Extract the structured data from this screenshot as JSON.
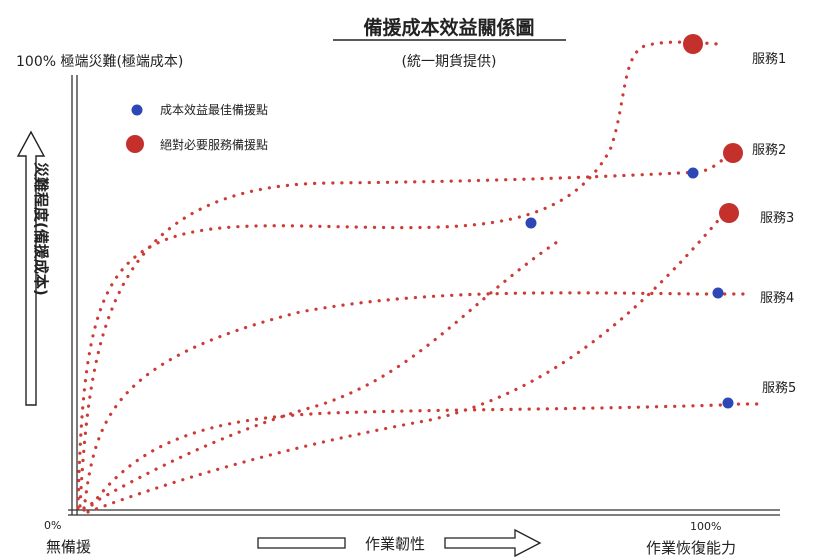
{
  "title": "備援成本效益關係圖",
  "subtitle": "(統一期貨提供)",
  "y_axis": {
    "top_label": "100% 極端災難(極端成本)",
    "label": "災難程度(備援成本)"
  },
  "x_axis": {
    "label": "作業韌性",
    "left_tick": "0%",
    "left_label": "無備援",
    "right_tick": "100%",
    "right_label": "作業恢復能力"
  },
  "legend": [
    {
      "label": "成本效益最佳備援點",
      "color": "#2d48b4",
      "marker": "small-dot"
    },
    {
      "label": "絕對必要服務備援點",
      "color": "#c4302c",
      "marker": "large-dot"
    }
  ],
  "colors": {
    "curve": "#cc3b35",
    "optimal": "#2d48b4",
    "essential": "#c4302c",
    "axis": "#333333"
  },
  "services": [
    {
      "label": "服務1"
    },
    {
      "label": "服務2"
    },
    {
      "label": "服務3"
    },
    {
      "label": "服務4"
    },
    {
      "label": "服務5"
    }
  ]
}
